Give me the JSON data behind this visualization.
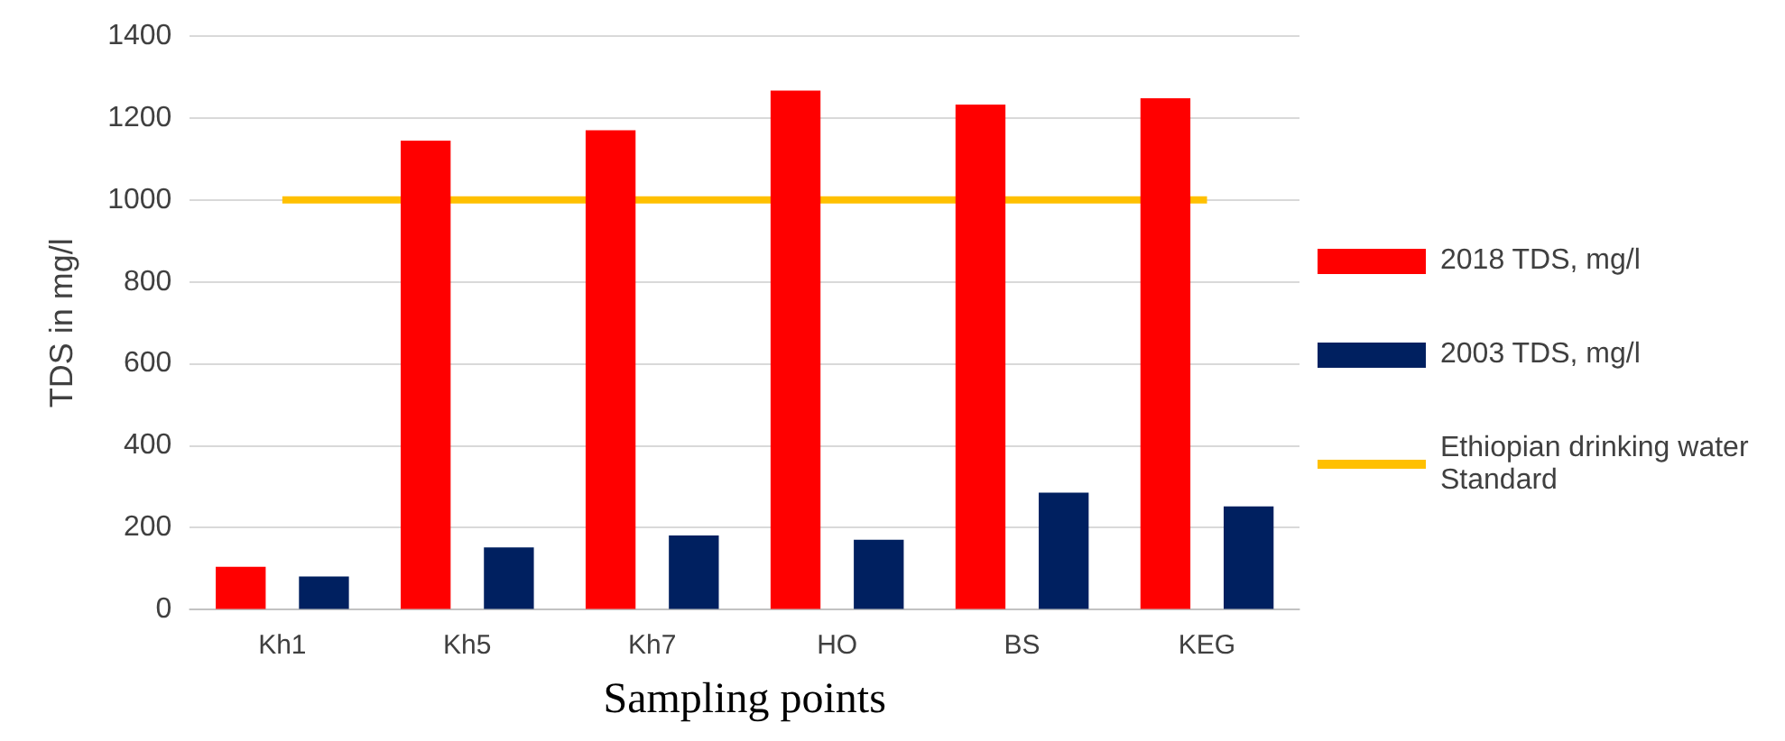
{
  "chart_data": {
    "type": "bar",
    "xlabel": "Sampling points",
    "ylabel": "TDS in mg/l",
    "categories": [
      "Kh1",
      "Kh5",
      "Kh7",
      "HO",
      "BS",
      "KEG"
    ],
    "series": [
      {
        "name": "2018 TDS, mg/l",
        "color": "#ff0000",
        "values": [
          105,
          1145,
          1170,
          1267,
          1233,
          1248
        ]
      },
      {
        "name": "2003 TDS, mg/l",
        "color": "#002060",
        "values": [
          81,
          152,
          181,
          171,
          286,
          252
        ]
      },
      {
        "name": "Ethiopian drinking water Standard",
        "type": "line",
        "color": "#ffc000",
        "values": [
          1000,
          1000,
          1000,
          1000,
          1000,
          1000
        ]
      }
    ],
    "ylim": [
      0,
      1400
    ],
    "yticks": [
      0,
      200,
      400,
      600,
      800,
      1000,
      1200,
      1400
    ],
    "grid": "y",
    "legend": "right",
    "marker": "none"
  }
}
